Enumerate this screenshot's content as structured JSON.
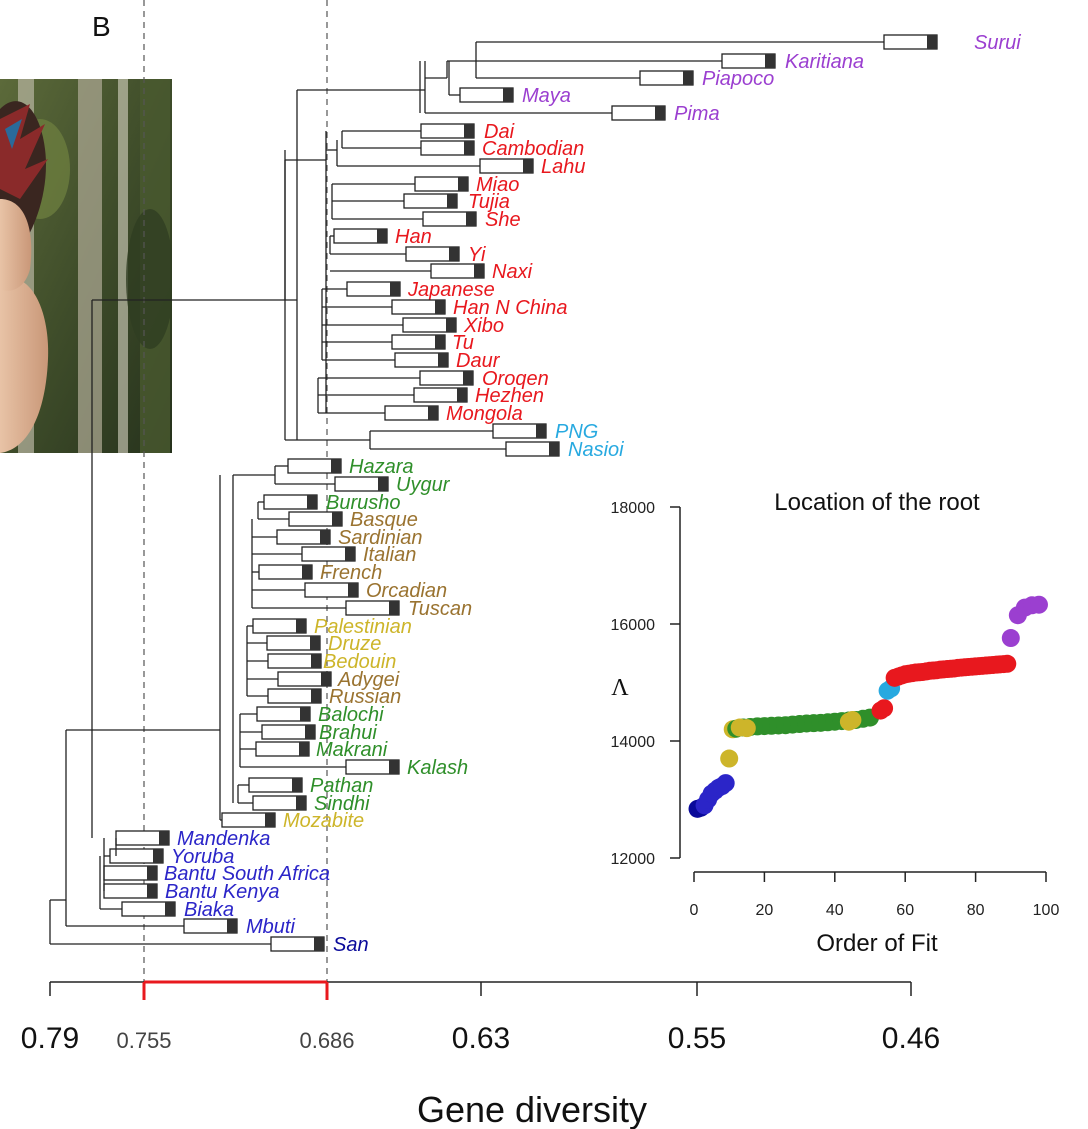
{
  "panel_letter": "B",
  "colors": {
    "Americas": "#9b3fd0",
    "EastAsia": "#e8181e",
    "Oceania": "#27a9e0",
    "CentralSouthAsia": "#2f8f2a",
    "Europe": "#9a7330",
    "MiddleEast": "#cdb52a",
    "Africa": "#2b25c8",
    "Africa_dark": "#0a0a9a",
    "scale_highlight": "#e8181e"
  },
  "photo": {
    "description_icon": "person-photo"
  },
  "chart_data": [
    {
      "type": "tree",
      "xlabel": "Gene diversity",
      "ticks": [
        {
          "label": "0.79",
          "gd": 0.79
        },
        {
          "label": "0.755",
          "gd": 0.755
        },
        {
          "label": "0.686",
          "gd": 0.686
        },
        {
          "label": "0.63",
          "gd": 0.63
        },
        {
          "label": "0.55",
          "gd": 0.55
        },
        {
          "label": "0.46",
          "gd": 0.46
        }
      ],
      "highlight_range": [
        0.755,
        0.686
      ],
      "reference_lines": [
        0.755,
        0.686
      ],
      "leaves": [
        {
          "name": "Surui",
          "region": "Americas"
        },
        {
          "name": "Karitiana",
          "region": "Americas"
        },
        {
          "name": "Piapoco",
          "region": "Americas"
        },
        {
          "name": "Maya",
          "region": "Americas"
        },
        {
          "name": "Pima",
          "region": "Americas"
        },
        {
          "name": "Dai",
          "region": "EastAsia"
        },
        {
          "name": "Cambodian",
          "region": "EastAsia"
        },
        {
          "name": "Lahu",
          "region": "EastAsia"
        },
        {
          "name": "Miao",
          "region": "EastAsia"
        },
        {
          "name": "Tujia",
          "region": "EastAsia"
        },
        {
          "name": "She",
          "region": "EastAsia"
        },
        {
          "name": "Han",
          "region": "EastAsia"
        },
        {
          "name": "Yi",
          "region": "EastAsia"
        },
        {
          "name": "Naxi",
          "region": "EastAsia"
        },
        {
          "name": "Japanese",
          "region": "EastAsia"
        },
        {
          "name": "Han N China",
          "region": "EastAsia"
        },
        {
          "name": "Xibo",
          "region": "EastAsia"
        },
        {
          "name": "Tu",
          "region": "EastAsia"
        },
        {
          "name": "Daur",
          "region": "EastAsia"
        },
        {
          "name": "Oroqen",
          "region": "EastAsia"
        },
        {
          "name": "Hezhen",
          "region": "EastAsia"
        },
        {
          "name": "Mongola",
          "region": "EastAsia"
        },
        {
          "name": "PNG",
          "region": "Oceania"
        },
        {
          "name": "Nasioi",
          "region": "Oceania"
        },
        {
          "name": "Hazara",
          "region": "CentralSouthAsia"
        },
        {
          "name": "Uygur",
          "region": "CentralSouthAsia"
        },
        {
          "name": "Burusho",
          "region": "CentralSouthAsia"
        },
        {
          "name": "Basque",
          "region": "Europe"
        },
        {
          "name": "Sardinian",
          "region": "Europe"
        },
        {
          "name": "Italian",
          "region": "Europe"
        },
        {
          "name": "French",
          "region": "Europe"
        },
        {
          "name": "Orcadian",
          "region": "Europe"
        },
        {
          "name": "Tuscan",
          "region": "Europe"
        },
        {
          "name": "Palestinian",
          "region": "MiddleEast"
        },
        {
          "name": "Druze",
          "region": "MiddleEast"
        },
        {
          "name": "Bedouin",
          "region": "MiddleEast"
        },
        {
          "name": "Adygei",
          "region": "Europe"
        },
        {
          "name": "Russian",
          "region": "Europe"
        },
        {
          "name": "Balochi",
          "region": "CentralSouthAsia"
        },
        {
          "name": "Brahui",
          "region": "CentralSouthAsia"
        },
        {
          "name": "Makrani",
          "region": "CentralSouthAsia"
        },
        {
          "name": "Kalash",
          "region": "CentralSouthAsia"
        },
        {
          "name": "Pathan",
          "region": "CentralSouthAsia"
        },
        {
          "name": "Sindhi",
          "region": "CentralSouthAsia"
        },
        {
          "name": "Mozabite",
          "region": "MiddleEast"
        },
        {
          "name": "Mandenka",
          "region": "Africa"
        },
        {
          "name": "Yoruba",
          "region": "Africa"
        },
        {
          "name": "Bantu South Africa",
          "region": "Africa"
        },
        {
          "name": "Bantu Kenya",
          "region": "Africa"
        },
        {
          "name": "Biaka",
          "region": "Africa"
        },
        {
          "name": "Mbuti",
          "region": "Africa"
        },
        {
          "name": "San",
          "region": "Africa_dark"
        }
      ]
    },
    {
      "type": "scatter",
      "title": "Location of the root",
      "xlabel": "Order of Fit",
      "ylabel": "Λ",
      "xlim": [
        0,
        100
      ],
      "ylim": [
        12000,
        18000
      ],
      "xticks": [
        0,
        20,
        40,
        60,
        80,
        100
      ],
      "yticks": [
        12000,
        14000,
        16000,
        18000
      ],
      "groups": [
        {
          "region": "Africa_dark",
          "x": [
            1,
            2
          ],
          "y": [
            12840,
            12860
          ]
        },
        {
          "region": "Africa",
          "x": [
            3,
            4,
            5,
            6,
            7,
            8,
            9
          ],
          "y": [
            12900,
            13000,
            13100,
            13150,
            13200,
            13230,
            13280
          ]
        },
        {
          "region": "MiddleEast",
          "x": [
            10,
            11
          ],
          "y": [
            13700,
            14200
          ]
        },
        {
          "region": "CentralSouthAsia",
          "x": [
            12,
            14,
            16,
            18,
            20,
            22,
            24,
            26,
            28,
            30,
            32,
            34,
            36,
            38,
            40,
            42,
            44,
            46,
            48,
            50
          ],
          "y": [
            14210,
            14230,
            14240,
            14250,
            14255,
            14260,
            14265,
            14270,
            14280,
            14290,
            14300,
            14305,
            14310,
            14320,
            14330,
            14340,
            14350,
            14360,
            14380,
            14400
          ]
        },
        {
          "region": "MiddleEast",
          "x": [
            13,
            15,
            44,
            45
          ],
          "y": [
            14230,
            14220,
            14330,
            14360
          ]
        },
        {
          "region": "EastAsia",
          "x": [
            53,
            54
          ],
          "y": [
            14520,
            14560
          ]
        },
        {
          "region": "Oceania",
          "x": [
            55,
            56
          ],
          "y": [
            14860,
            14900
          ]
        },
        {
          "region": "EastAsia",
          "x": [
            57,
            58,
            59,
            60,
            61,
            62,
            63,
            64,
            65,
            66,
            67,
            68,
            69,
            70,
            71,
            72,
            73,
            74,
            75,
            76,
            77,
            78,
            79,
            80,
            81,
            82,
            83,
            84,
            85,
            86,
            87,
            88,
            89
          ],
          "y": [
            15080,
            15100,
            15120,
            15140,
            15150,
            15160,
            15170,
            15175,
            15180,
            15190,
            15200,
            15205,
            15210,
            15220,
            15225,
            15230,
            15235,
            15240,
            15250,
            15255,
            15260,
            15265,
            15270,
            15275,
            15280,
            15285,
            15290,
            15295,
            15300,
            15305,
            15310,
            15315,
            15320
          ]
        },
        {
          "region": "Americas",
          "x": [
            90,
            92,
            94,
            96,
            98
          ],
          "y": [
            15760,
            16150,
            16280,
            16320,
            16330
          ]
        }
      ]
    }
  ]
}
